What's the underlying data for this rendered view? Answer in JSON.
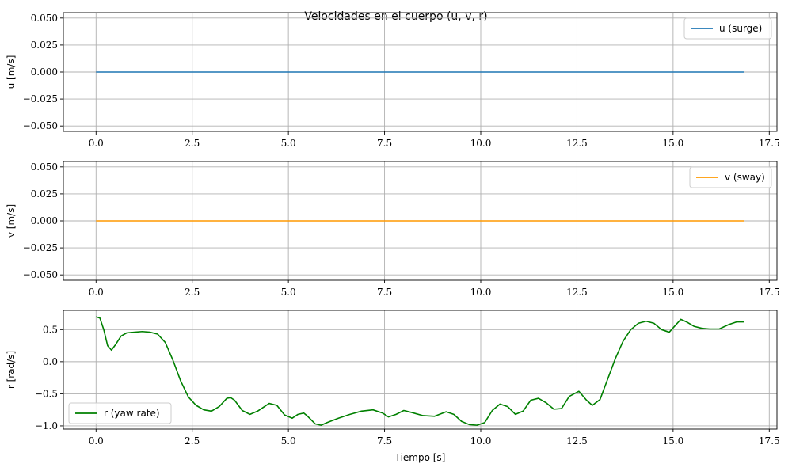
{
  "title": "Velocidades en el cuerpo (u, v, r)",
  "chart_data": [
    {
      "type": "line",
      "xlabel": "",
      "ylabel": "u [m/s]",
      "xlim": [
        -0.85,
        17.7
      ],
      "ylim": [
        -0.055,
        0.055
      ],
      "xticks": [
        0.0,
        2.5,
        5.0,
        7.5,
        10.0,
        12.5,
        15.0,
        17.5
      ],
      "xtick_labels": [
        "0.0",
        "2.5",
        "5.0",
        "7.5",
        "10.0",
        "12.5",
        "15.0",
        "17.5"
      ],
      "yticks": [
        0.05,
        0.025,
        0.0,
        -0.025,
        -0.05
      ],
      "ytick_labels": [
        "0.050",
        "0.025",
        "0.000",
        "−0.025",
        "−0.050"
      ],
      "grid": true,
      "legend": "top-right",
      "series": [
        {
          "name": "u (surge)",
          "color": "#1f77b4",
          "x": [
            0.0,
            16.85
          ],
          "y": [
            0.0,
            0.0
          ]
        }
      ]
    },
    {
      "type": "line",
      "xlabel": "",
      "ylabel": "v [m/s]",
      "xlim": [
        -0.85,
        17.7
      ],
      "ylim": [
        -0.055,
        0.055
      ],
      "xticks": [
        0.0,
        2.5,
        5.0,
        7.5,
        10.0,
        12.5,
        15.0,
        17.5
      ],
      "xtick_labels": [
        "0.0",
        "2.5",
        "5.0",
        "7.5",
        "10.0",
        "12.5",
        "15.0",
        "17.5"
      ],
      "yticks": [
        0.05,
        0.025,
        0.0,
        -0.025,
        -0.05
      ],
      "ytick_labels": [
        "0.050",
        "0.025",
        "0.000",
        "−0.025",
        "−0.050"
      ],
      "grid": true,
      "legend": "top-right",
      "series": [
        {
          "name": "v (sway)",
          "color": "#ff9900",
          "x": [
            0.0,
            16.85
          ],
          "y": [
            0.0,
            0.0
          ]
        }
      ]
    },
    {
      "type": "line",
      "xlabel": "Tiempo [s]",
      "ylabel": "r [rad/s]",
      "xlim": [
        -0.85,
        17.7
      ],
      "ylim": [
        -1.05,
        0.8
      ],
      "xticks": [
        0.0,
        2.5,
        5.0,
        7.5,
        10.0,
        12.5,
        15.0,
        17.5
      ],
      "xtick_labels": [
        "0.0",
        "2.5",
        "5.0",
        "7.5",
        "10.0",
        "12.5",
        "15.0",
        "17.5"
      ],
      "yticks": [
        0.5,
        0.0,
        -0.5,
        -1.0
      ],
      "ytick_labels": [
        "0.5",
        "0.0",
        "−0.5",
        "−1.0"
      ],
      "grid": true,
      "legend": "bottom-left",
      "series": [
        {
          "name": "r (yaw rate)",
          "color": "#008000",
          "x": [
            0.0,
            0.1,
            0.2,
            0.3,
            0.4,
            0.5,
            0.65,
            0.8,
            1.0,
            1.2,
            1.4,
            1.6,
            1.8,
            2.0,
            2.2,
            2.4,
            2.6,
            2.8,
            3.0,
            3.2,
            3.4,
            3.5,
            3.6,
            3.8,
            4.0,
            4.2,
            4.5,
            4.7,
            4.9,
            5.1,
            5.25,
            5.4,
            5.5,
            5.7,
            5.85,
            6.0,
            6.3,
            6.6,
            6.9,
            7.2,
            7.45,
            7.6,
            7.8,
            8.0,
            8.2,
            8.5,
            8.8,
            9.1,
            9.3,
            9.5,
            9.7,
            9.9,
            10.1,
            10.3,
            10.5,
            10.7,
            10.9,
            11.1,
            11.3,
            11.5,
            11.7,
            11.9,
            12.1,
            12.3,
            12.55,
            12.75,
            12.9,
            13.1,
            13.3,
            13.5,
            13.7,
            13.9,
            14.1,
            14.3,
            14.5,
            14.7,
            14.9,
            15.05,
            15.2,
            15.35,
            15.55,
            15.75,
            15.95,
            16.2,
            16.45,
            16.65,
            16.8,
            16.85
          ],
          "y": [
            0.7,
            0.68,
            0.5,
            0.25,
            0.18,
            0.26,
            0.4,
            0.45,
            0.46,
            0.47,
            0.46,
            0.43,
            0.3,
            0.02,
            -0.3,
            -0.55,
            -0.68,
            -0.75,
            -0.77,
            -0.7,
            -0.57,
            -0.56,
            -0.6,
            -0.76,
            -0.82,
            -0.77,
            -0.65,
            -0.68,
            -0.83,
            -0.88,
            -0.82,
            -0.8,
            -0.85,
            -0.97,
            -0.99,
            -0.95,
            -0.88,
            -0.82,
            -0.77,
            -0.75,
            -0.8,
            -0.86,
            -0.82,
            -0.76,
            -0.79,
            -0.84,
            -0.85,
            -0.78,
            -0.82,
            -0.93,
            -0.98,
            -0.99,
            -0.95,
            -0.76,
            -0.66,
            -0.7,
            -0.82,
            -0.77,
            -0.6,
            -0.57,
            -0.64,
            -0.74,
            -0.73,
            -0.54,
            -0.46,
            -0.6,
            -0.68,
            -0.59,
            -0.27,
            0.05,
            0.32,
            0.5,
            0.6,
            0.63,
            0.6,
            0.5,
            0.46,
            0.56,
            0.66,
            0.62,
            0.55,
            0.52,
            0.51,
            0.51,
            0.58,
            0.62,
            0.62,
            0.62
          ]
        }
      ]
    }
  ]
}
